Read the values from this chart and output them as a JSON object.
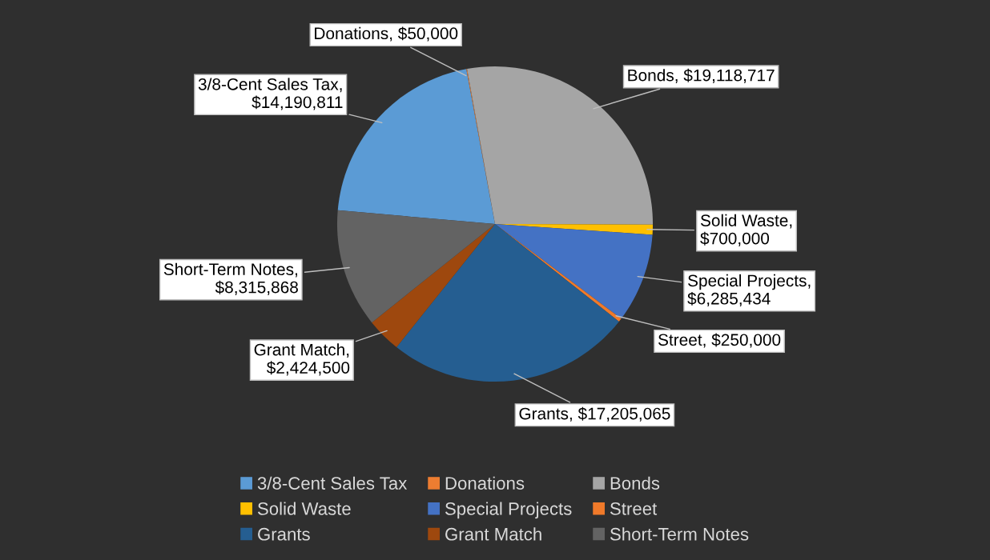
{
  "chart_data": {
    "type": "pie",
    "categories": [
      "3/8-Cent Sales Tax",
      "Donations",
      "Bonds",
      "Solid Waste",
      "Special Projects",
      "Street",
      "Grants",
      "Grant Match",
      "Short-Term Notes"
    ],
    "values": [
      14190811,
      50000,
      19118717,
      700000,
      6285434,
      250000,
      17205065,
      2424500,
      8315868
    ],
    "value_labels": [
      "3/8-Cent Sales Tax,\n$14,190,811",
      "Donations, $50,000",
      "Bonds, $19,118,717",
      "Solid Waste,\n$700,000",
      "Special Projects,\n$6,285,434",
      "Street, $250,000",
      "Grants, $17,205,065",
      "Grant Match,\n$2,424,500",
      "Short-Term Notes,\n$8,315,868"
    ],
    "colors": [
      "#5b9bd5",
      "#ed7d31",
      "#a5a5a5",
      "#ffc000",
      "#4472c4",
      "#f07a2a",
      "#255e91",
      "#9e480e",
      "#636363"
    ],
    "legend": "bottom"
  }
}
